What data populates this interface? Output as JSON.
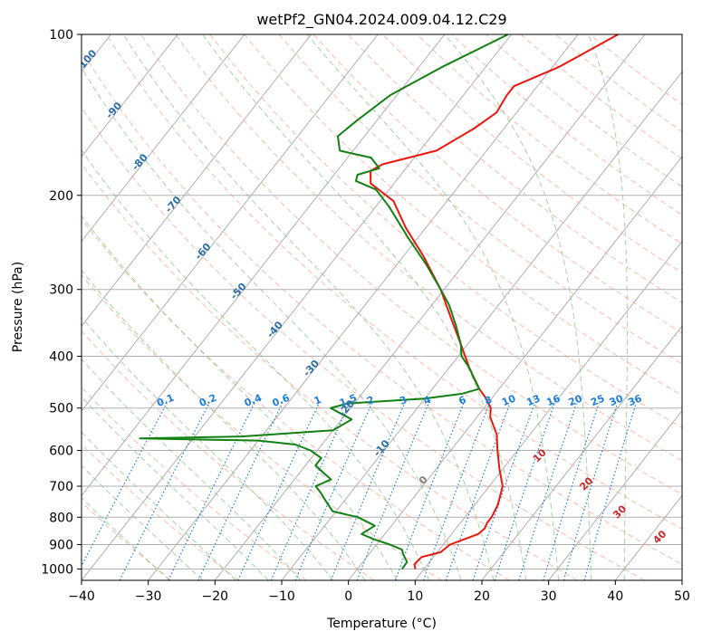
{
  "chart_data": {
    "type": "line",
    "title": "wetPf2_GN04.2024.009.04.12.C29",
    "xlabel": "Temperature (°C)",
    "ylabel": "Pressure (hPa)",
    "xlim": [
      -40,
      50
    ],
    "ylim": [
      1050,
      100
    ],
    "y_scale": "log",
    "skew": true,
    "grid": true,
    "x_ticks": [
      -40,
      -30,
      -20,
      -10,
      0,
      10,
      20,
      30,
      40,
      50
    ],
    "y_ticks": [
      100,
      200,
      300,
      400,
      500,
      600,
      700,
      800,
      900,
      1000
    ],
    "colors": {
      "temperature": "#e8170f",
      "dewpoint": "#138013",
      "dry_adiabat": "#f7a38c",
      "moist_adiabat": "#7fc07f",
      "mixing_ratio": "#1f7fd9",
      "moist_label": "#2b6fa8",
      "dry_label": "#c8282a"
    },
    "series": [
      {
        "color": "#e8170f",
        "points": [
          [
            1000,
            8.7
          ],
          [
            980,
            8.0
          ],
          [
            950,
            8.2
          ],
          [
            930,
            10.5
          ],
          [
            900,
            11.0
          ],
          [
            880,
            12.5
          ],
          [
            860,
            14.0
          ],
          [
            840,
            14.3
          ],
          [
            820,
            14.0
          ],
          [
            800,
            14.0
          ],
          [
            760,
            13.5
          ],
          [
            700,
            12.0
          ],
          [
            650,
            9.5
          ],
          [
            600,
            7.0
          ],
          [
            560,
            5.0
          ],
          [
            520,
            2.0
          ],
          [
            500,
            1.0
          ],
          [
            480,
            -0.8
          ],
          [
            460,
            -3.0
          ],
          [
            420,
            -7.0
          ],
          [
            380,
            -11.0
          ],
          [
            340,
            -15.5
          ],
          [
            300,
            -20.5
          ],
          [
            260,
            -27.0
          ],
          [
            230,
            -33.0
          ],
          [
            205,
            -38.0
          ],
          [
            190,
            -43.5
          ],
          [
            180,
            -45.0
          ],
          [
            175,
            -44.0
          ],
          [
            165,
            -37.5
          ],
          [
            150,
            -34.5
          ],
          [
            140,
            -33.0
          ],
          [
            130,
            -33.5
          ],
          [
            125,
            -33.5
          ],
          [
            115,
            -29.0
          ],
          [
            100,
            -24.0
          ]
        ]
      },
      {
        "color": "#138013",
        "points": [
          [
            1000,
            6.7
          ],
          [
            970,
            6.6
          ],
          [
            940,
            5.2
          ],
          [
            920,
            4.4
          ],
          [
            900,
            2.0
          ],
          [
            880,
            -1.0
          ],
          [
            860,
            -3.5
          ],
          [
            830,
            -2.5
          ],
          [
            800,
            -6.0
          ],
          [
            780,
            -10.5
          ],
          [
            750,
            -12.5
          ],
          [
            720,
            -14.5
          ],
          [
            700,
            -16.0
          ],
          [
            680,
            -14.5
          ],
          [
            660,
            -16.5
          ],
          [
            640,
            -18.5
          ],
          [
            620,
            -18.5
          ],
          [
            600,
            -21.0
          ],
          [
            585,
            -24.0
          ],
          [
            575,
            -30.0
          ],
          [
            570,
            -48.0
          ],
          [
            565,
            -33.0
          ],
          [
            550,
            -20.0
          ],
          [
            525,
            -18.5
          ],
          [
            500,
            -23.0
          ],
          [
            490,
            -21.0
          ],
          [
            480,
            -10.0
          ],
          [
            470,
            -5.0
          ],
          [
            460,
            -3.0
          ],
          [
            440,
            -5.0
          ],
          [
            420,
            -7.0
          ],
          [
            400,
            -9.5
          ],
          [
            380,
            -11.0
          ],
          [
            350,
            -14.0
          ],
          [
            320,
            -17.5
          ],
          [
            300,
            -20.5
          ],
          [
            270,
            -25.5
          ],
          [
            240,
            -31.5
          ],
          [
            210,
            -38.0
          ],
          [
            195,
            -42.0
          ],
          [
            188,
            -46.0
          ],
          [
            183,
            -46.5
          ],
          [
            178,
            -44.0
          ],
          [
            170,
            -46.5
          ],
          [
            165,
            -52.0
          ],
          [
            155,
            -54.0
          ],
          [
            145,
            -53.0
          ],
          [
            130,
            -51.0
          ],
          [
            115,
            -46.5
          ],
          [
            100,
            -40.5
          ]
        ]
      }
    ],
    "mixing_ratio_labels": [
      "0.1",
      "0.2",
      "0.4",
      "0.6",
      "1",
      "1.5",
      "2",
      "3",
      "4",
      "6",
      "8",
      "10",
      "13",
      "16",
      "20",
      "25",
      "30",
      "36"
    ],
    "moist_adiabat_labels": [
      "-100",
      "-90",
      "-80",
      "-70",
      "-60",
      "-50",
      "-40",
      "-30",
      "-20",
      "-10",
      "0"
    ],
    "dry_adiabat_labels": [
      "10",
      "20",
      "30",
      "40"
    ]
  }
}
